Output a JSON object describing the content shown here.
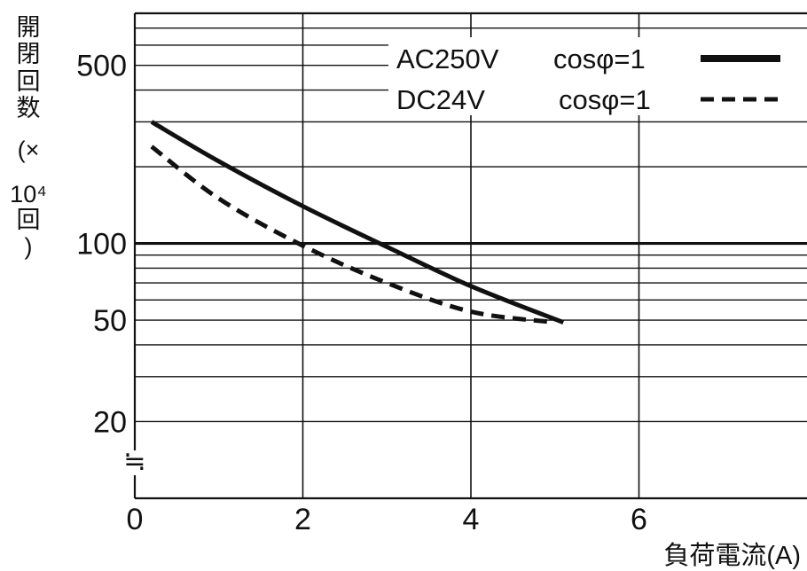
{
  "chart_data": {
    "type": "line",
    "x_axis": {
      "label": "負荷電流(A)",
      "range": [
        0,
        8
      ],
      "ticks": [
        0,
        2,
        4,
        6
      ],
      "tick_labels": [
        "0",
        "2",
        "4",
        "6"
      ],
      "grid": true
    },
    "y_axis": {
      "label_chars": [
        "開",
        "閉",
        "回",
        "数",
        "(×",
        "10⁴",
        "回",
        ")"
      ],
      "scale": "log",
      "range": [
        10,
        800
      ],
      "ticks": [
        20,
        50,
        100,
        500
      ],
      "tick_labels": [
        "20",
        "50",
        "100",
        "500"
      ],
      "minor_gridlines": [
        20,
        30,
        40,
        50,
        60,
        70,
        80,
        90,
        100,
        200,
        300,
        400,
        500,
        600,
        700
      ],
      "break_mark": "≒",
      "grid": true
    },
    "legend": {
      "placement": "top-right"
    },
    "series": [
      {
        "name": "AC250V",
        "condition": "cosφ=1",
        "style": "solid",
        "points": [
          [
            0.2,
            300
          ],
          [
            1.0,
            210
          ],
          [
            2.0,
            140
          ],
          [
            3.0,
            97
          ],
          [
            4.0,
            68
          ],
          [
            5.1,
            49
          ]
        ]
      },
      {
        "name": "DC24V",
        "condition": "cosφ=1",
        "style": "dashed",
        "points": [
          [
            0.2,
            240
          ],
          [
            1.0,
            150
          ],
          [
            2.0,
            98
          ],
          [
            3.0,
            70
          ],
          [
            4.0,
            54
          ],
          [
            5.0,
            49
          ]
        ]
      }
    ]
  }
}
